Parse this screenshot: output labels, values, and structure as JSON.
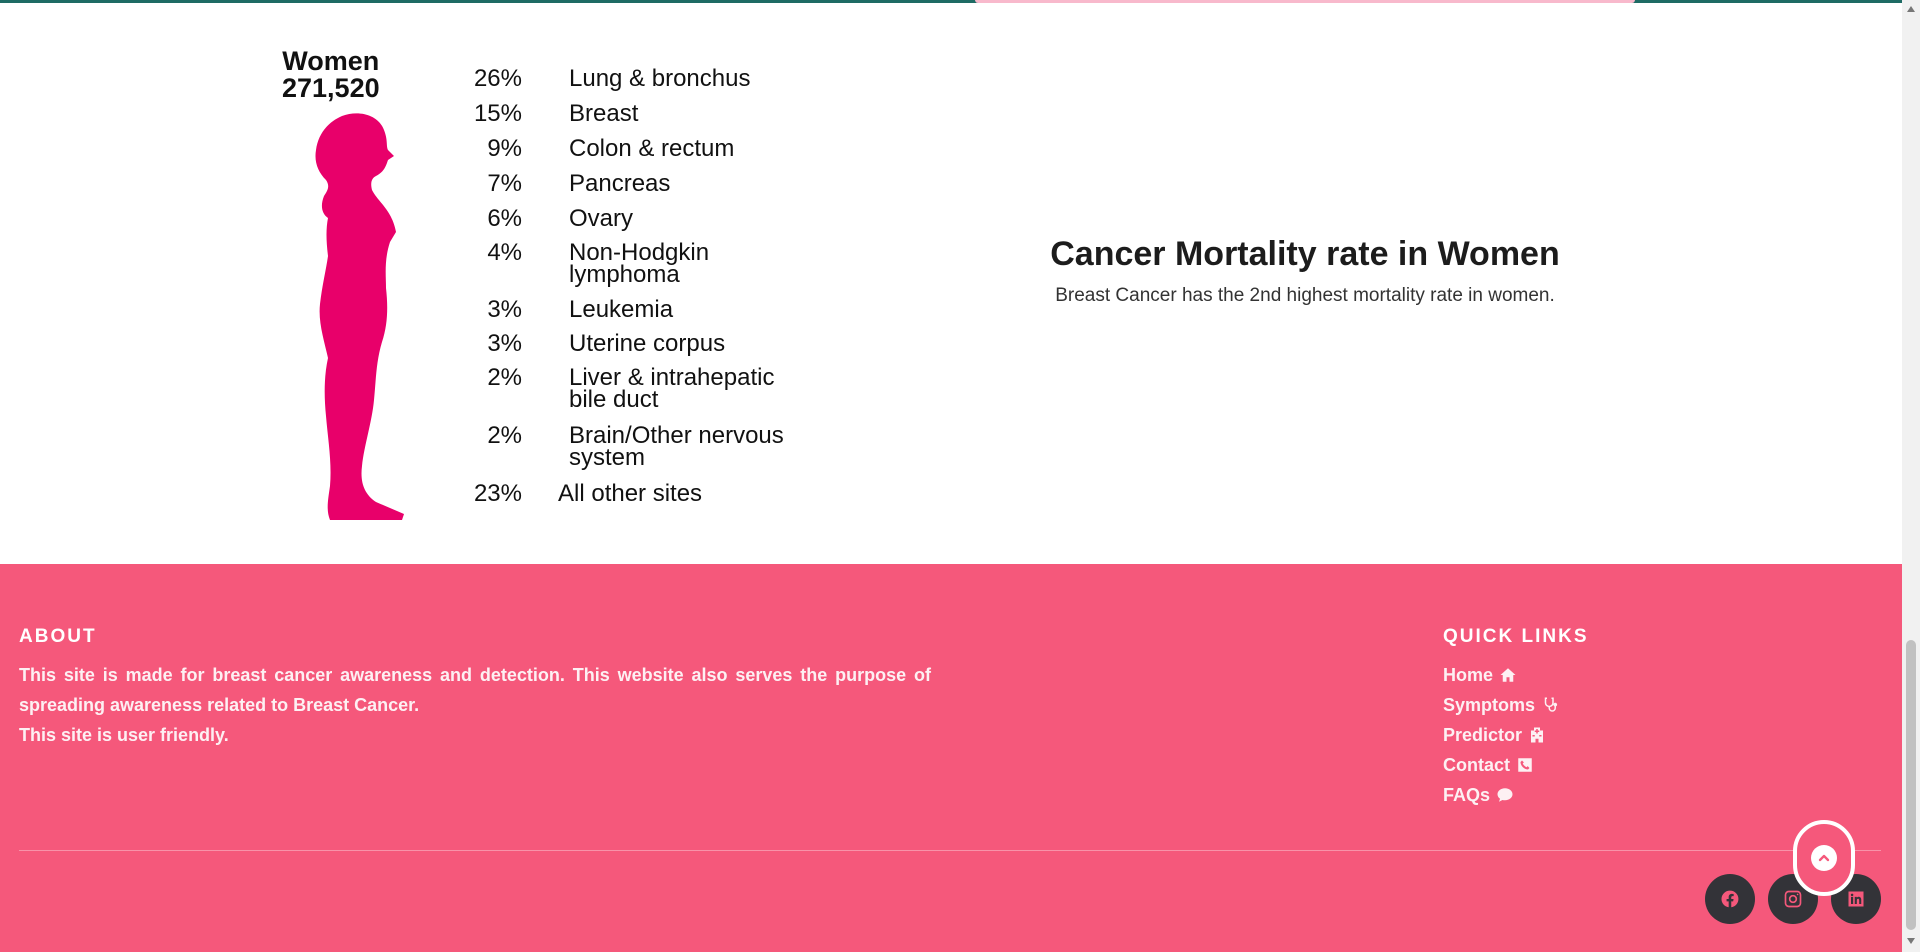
{
  "infographic": {
    "heading_line1": "Women",
    "heading_line2": "271,520",
    "silhouette_color": "#e8006a",
    "rows": [
      {
        "pct": "26%",
        "site_line1": "Lung & bronchus",
        "site_line2": ""
      },
      {
        "pct": "15%",
        "site_line1": "Breast",
        "site_line2": ""
      },
      {
        "pct": "9%",
        "site_line1": "Colon & rectum",
        "site_line2": ""
      },
      {
        "pct": "7%",
        "site_line1": "Pancreas",
        "site_line2": ""
      },
      {
        "pct": "6%",
        "site_line1": "Ovary",
        "site_line2": ""
      },
      {
        "pct": "4%",
        "site_line1": "Non-Hodgkin",
        "site_line2": "lymphoma"
      },
      {
        "pct": "3%",
        "site_line1": "Leukemia",
        "site_line2": ""
      },
      {
        "pct": "3%",
        "site_line1": "Uterine corpus",
        "site_line2": ""
      },
      {
        "pct": "2%",
        "site_line1": "Liver & intrahepatic",
        "site_line2": "bile duct"
      },
      {
        "pct": "2%",
        "site_line1": "Brain/Other nervous",
        "site_line2": "system"
      },
      {
        "pct": "23%",
        "site_line1": "All other sites",
        "site_line2": ""
      }
    ]
  },
  "mortality": {
    "title": "Cancer Mortality rate in Women",
    "text": "Breast Cancer has the 2nd highest mortality rate in women."
  },
  "footer": {
    "background": "#f5587b",
    "about_title": "ABOUT",
    "about_p1": "This site is made for breast cancer awareness and detection. This website also serves the purpose of spreading awareness related to Breast Cancer.",
    "about_p2": "This site is user friendly.",
    "quick_links_title": "QUICK LINKS",
    "quick_links": [
      {
        "label": "Home",
        "icon": "home-icon"
      },
      {
        "label": "Symptoms",
        "icon": "stethoscope-icon"
      },
      {
        "label": "Predictor",
        "icon": "hospital-icon"
      },
      {
        "label": "Contact",
        "icon": "phone-icon"
      },
      {
        "label": "FAQs",
        "icon": "chat-icon"
      }
    ],
    "social": [
      {
        "name": "facebook",
        "icon": "facebook-icon"
      },
      {
        "name": "instagram",
        "icon": "instagram-icon"
      },
      {
        "name": "linkedin",
        "icon": "linkedin-icon"
      }
    ]
  }
}
